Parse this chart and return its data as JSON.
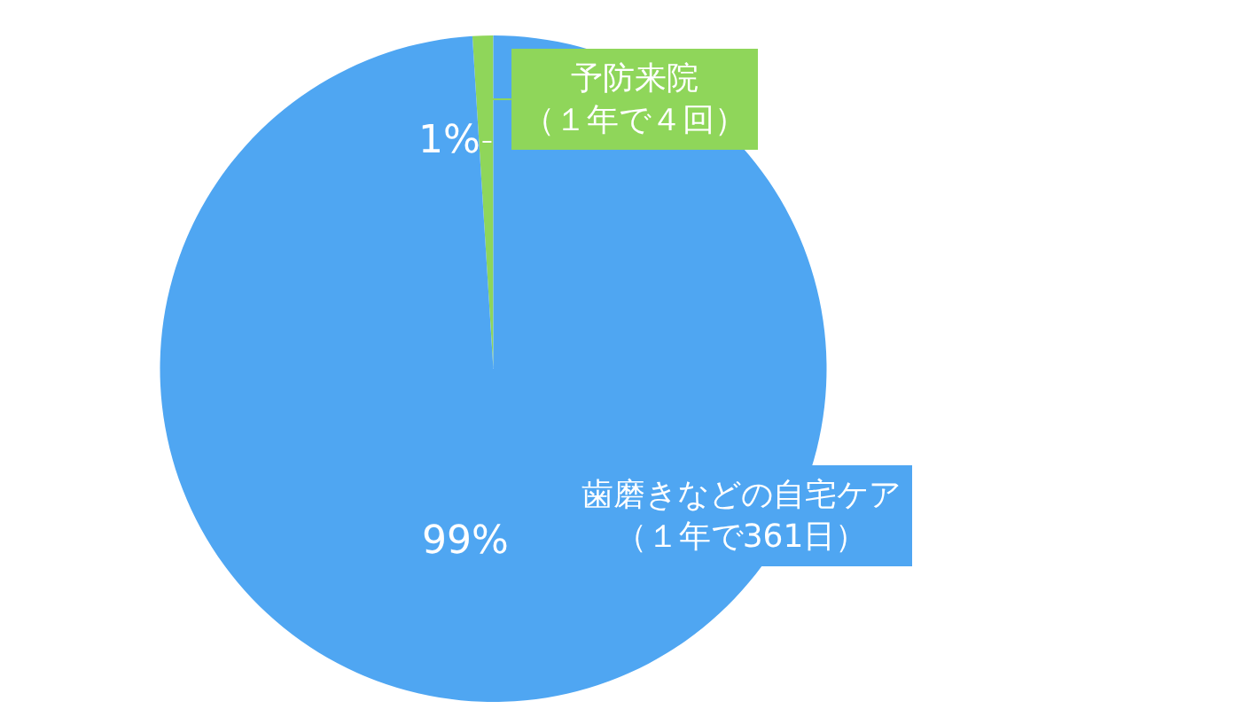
{
  "chart_data": {
    "type": "pie",
    "categories": [
      "予防来院（１年で４回）",
      "歯磨きなどの自宅ケア（１年で361日）"
    ],
    "values": [
      1,
      99
    ],
    "colors": [
      "#8fd65a",
      "#4fa6f2"
    ],
    "value_labels": [
      "1%",
      "99%"
    ],
    "legend": false
  }
}
